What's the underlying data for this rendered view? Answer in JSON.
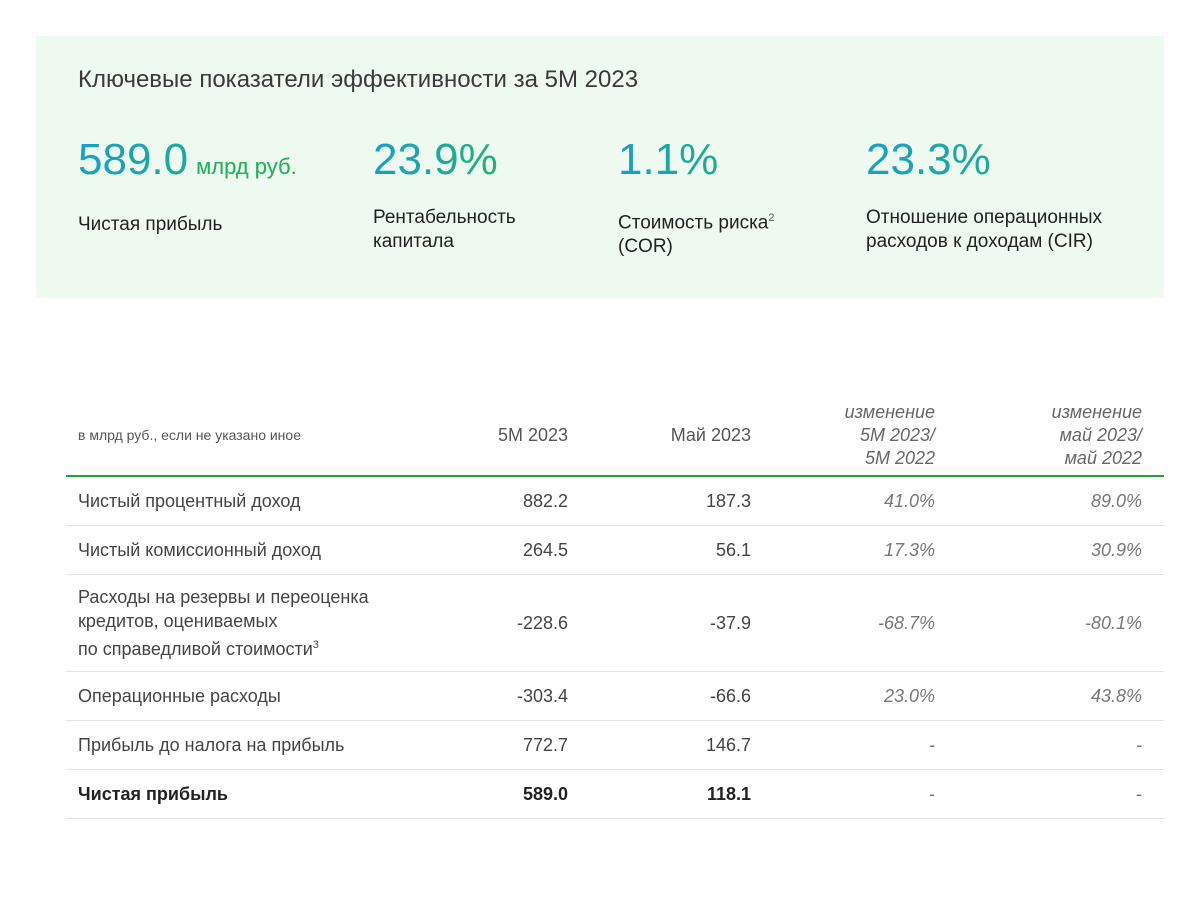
{
  "kpi_panel": {
    "title": "Ключевые показатели эффективности за 5М 2023",
    "items": [
      {
        "value": "589.0",
        "unit": "млрд руб.",
        "label": "Чистая прибыль",
        "label_line2": "",
        "sup": ""
      },
      {
        "value": "23.9%",
        "unit": "",
        "label": "Рентабельность",
        "label_line2": "капитала",
        "sup": ""
      },
      {
        "value": "1.1%",
        "unit": "",
        "label": "Стоимость риска",
        "label_line2": "(COR)",
        "sup": "2"
      },
      {
        "value": "23.3%",
        "unit": "",
        "label": "Отношение операционных",
        "label_line2": "расходов к доходам (CIR)",
        "sup": ""
      }
    ]
  },
  "table": {
    "units_note": "в млрд руб., если не указано иное",
    "headers": {
      "col1": "5М 2023",
      "col2": "Май 2023",
      "col3_l1": "изменение",
      "col3_l2": "5М 2023/",
      "col3_l3": "5М 2022",
      "col4_l1": "изменение",
      "col4_l2": "май 2023/",
      "col4_l3": "май  2022"
    },
    "rows": [
      {
        "name": "Чистый процентный доход",
        "name2": "",
        "name3": "",
        "sup": "",
        "v1": "882.2",
        "v2": "187.3",
        "c1": "41.0%",
        "c2": "89.0%"
      },
      {
        "name": "Чистый комиссионный доход",
        "name2": "",
        "name3": "",
        "sup": "",
        "v1": "264.5",
        "v2": "56.1",
        "c1": "17.3%",
        "c2": "30.9%"
      },
      {
        "name": "Расходы на резервы и переоценка",
        "name2": "кредитов, оцениваемых",
        "name3": "по справедливой стоимости",
        "sup": "3",
        "v1": "-228.6",
        "v2": "-37.9",
        "c1": "-68.7%",
        "c2": "-80.1%"
      },
      {
        "name": "Операционные расходы",
        "name2": "",
        "name3": "",
        "sup": "",
        "v1": "-303.4",
        "v2": "-66.6",
        "c1": "23.0%",
        "c2": "43.8%"
      },
      {
        "name": "Прибыль до налога на прибыль",
        "name2": "",
        "name3": "",
        "sup": "",
        "v1": "772.7",
        "v2": "146.7",
        "c1": "-",
        "c2": "-"
      },
      {
        "name": "Чистая прибыль",
        "name2": "",
        "name3": "",
        "sup": "",
        "v1": "589.0",
        "v2": "118.1",
        "c1": "-",
        "c2": "-"
      }
    ]
  },
  "colors": {
    "panel_bg": "#eef9ef",
    "accent_green": "#21a038",
    "gradient_start": "#1a9fc7",
    "gradient_end": "#21b56a"
  }
}
